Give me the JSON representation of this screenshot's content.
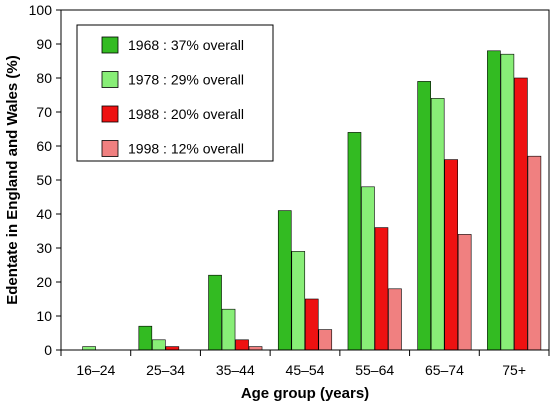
{
  "chart_data": {
    "type": "bar",
    "xlabel": "Age group (years)",
    "ylabel": "Edentate in England and Wales (%)",
    "ylim": [
      0,
      100
    ],
    "yticks": [
      0,
      10,
      20,
      30,
      40,
      50,
      60,
      70,
      80,
      90,
      100
    ],
    "grid": false,
    "legend_position": "top-left",
    "categories": [
      "16–24",
      "25–34",
      "35–44",
      "45–54",
      "55–64",
      "65–74",
      "75+"
    ],
    "series": [
      {
        "name": "1968 : 37% overall",
        "color": "#33bb22",
        "values": [
          0,
          7,
          22,
          41,
          64,
          79,
          88
        ]
      },
      {
        "name": "1978 : 29% overall",
        "color": "#88ee77",
        "values": [
          1,
          3,
          12,
          29,
          48,
          74,
          87
        ]
      },
      {
        "name": "1988 : 20% overall",
        "color": "#ee1111",
        "values": [
          0,
          1,
          3,
          15,
          36,
          56,
          80
        ]
      },
      {
        "name": "1998 : 12% overall",
        "color": "#f08080",
        "values": [
          0,
          0,
          1,
          6,
          18,
          34,
          57
        ]
      }
    ]
  }
}
